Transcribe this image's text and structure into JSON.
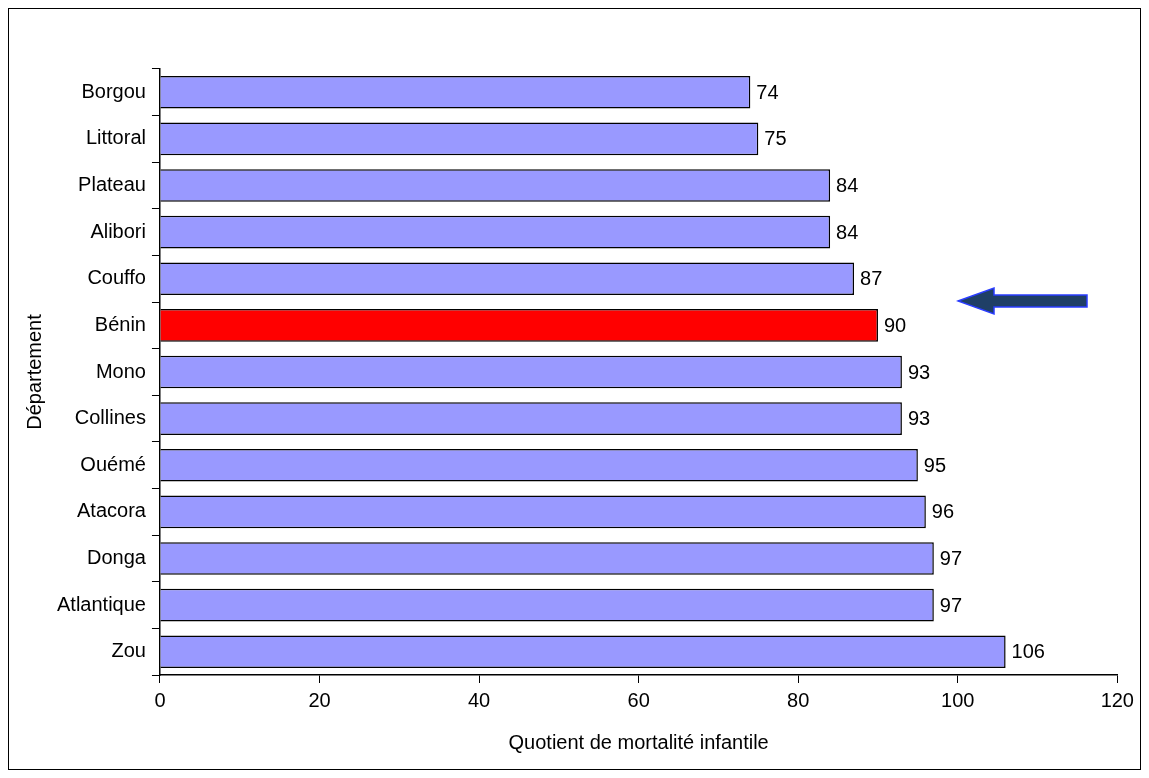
{
  "chart_data": {
    "type": "bar",
    "orientation": "horizontal",
    "xlabel": "Quotient de mortalité infantile",
    "ylabel": "Département",
    "categories": [
      "Borgou",
      "Littoral",
      "Plateau",
      "Alibori",
      "Couffo",
      "Bénin",
      "Mono",
      "Collines",
      "Ouémé",
      "Atacora",
      "Donga",
      "Atlantique",
      "Zou"
    ],
    "values": [
      74,
      75,
      84,
      84,
      87,
      90,
      93,
      93,
      95,
      96,
      97,
      97,
      106
    ],
    "colors": [
      "#9999ff",
      "#9999ff",
      "#9999ff",
      "#9999ff",
      "#9999ff",
      "#ff0000",
      "#9999ff",
      "#9999ff",
      "#9999ff",
      "#9999ff",
      "#9999ff",
      "#9999ff",
      "#9999ff"
    ],
    "xlim": [
      0,
      120
    ],
    "xticks": [
      0,
      20,
      40,
      60,
      80,
      100,
      120
    ],
    "data_labels": true,
    "grid": false,
    "legend": false
  }
}
